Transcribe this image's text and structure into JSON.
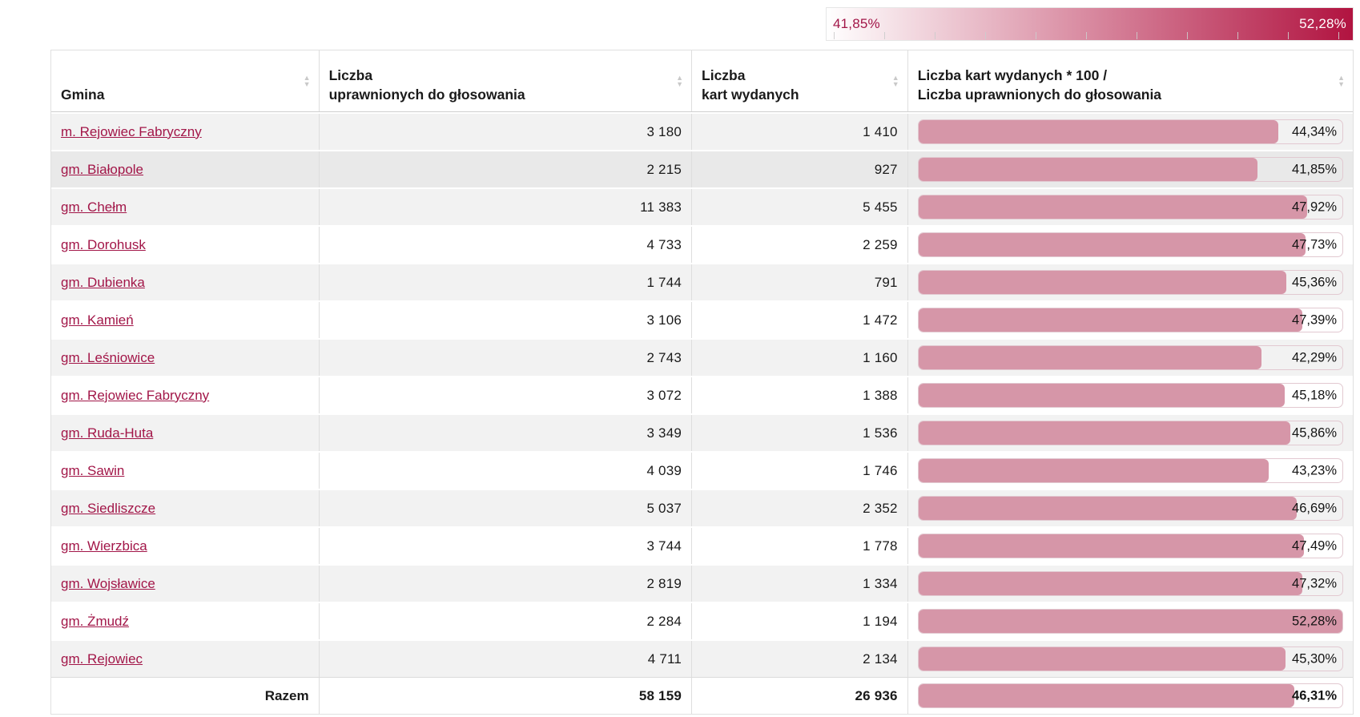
{
  "legend": {
    "min_label": "41,85%",
    "max_label": "52,28%",
    "min_value": 41.85,
    "max_value": 52.28,
    "tick_values": [
      42,
      43,
      44,
      45,
      46,
      47,
      48,
      49,
      50,
      51,
      52
    ]
  },
  "colors": {
    "accent": "#a21648",
    "bar_fill": "#d696a8",
    "gradient_start": "#ffffff",
    "gradient_end": "#b11340",
    "row_stripe": "#f2f2f2",
    "row_hover": "#e9e9e9"
  },
  "table": {
    "columns": [
      {
        "lines": [
          "Gmina"
        ]
      },
      {
        "lines": [
          "Liczba",
          "uprawnionych do głosowania"
        ]
      },
      {
        "lines": [
          "Liczba",
          "kart wydanych"
        ]
      },
      {
        "lines": [
          "Liczba kart wydanych * 100 /",
          "Liczba uprawnionych do głosowania"
        ]
      }
    ],
    "rows": [
      {
        "gmina": "m. Rejowiec Fabryczny",
        "uprawnieni": "3 180",
        "karty": "1 410",
        "procent": "44,34%",
        "procent_value": 44.34,
        "highlight": false
      },
      {
        "gmina": "gm. Białopole",
        "uprawnieni": "2 215",
        "karty": "927",
        "procent": "41,85%",
        "procent_value": 41.85,
        "highlight": true
      },
      {
        "gmina": "gm. Chełm",
        "uprawnieni": "11 383",
        "karty": "5 455",
        "procent": "47,92%",
        "procent_value": 47.92,
        "highlight": false
      },
      {
        "gmina": "gm. Dorohusk",
        "uprawnieni": "4 733",
        "karty": "2 259",
        "procent": "47,73%",
        "procent_value": 47.73,
        "highlight": false
      },
      {
        "gmina": "gm. Dubienka",
        "uprawnieni": "1 744",
        "karty": "791",
        "procent": "45,36%",
        "procent_value": 45.36,
        "highlight": false
      },
      {
        "gmina": "gm. Kamień",
        "uprawnieni": "3 106",
        "karty": "1 472",
        "procent": "47,39%",
        "procent_value": 47.39,
        "highlight": false
      },
      {
        "gmina": "gm. Leśniowice",
        "uprawnieni": "2 743",
        "karty": "1 160",
        "procent": "42,29%",
        "procent_value": 42.29,
        "highlight": false
      },
      {
        "gmina": "gm. Rejowiec Fabryczny",
        "uprawnieni": "3 072",
        "karty": "1 388",
        "procent": "45,18%",
        "procent_value": 45.18,
        "highlight": false
      },
      {
        "gmina": "gm. Ruda-Huta",
        "uprawnieni": "3 349",
        "karty": "1 536",
        "procent": "45,86%",
        "procent_value": 45.86,
        "highlight": false
      },
      {
        "gmina": "gm. Sawin",
        "uprawnieni": "4 039",
        "karty": "1 746",
        "procent": "43,23%",
        "procent_value": 43.23,
        "highlight": false
      },
      {
        "gmina": "gm. Siedliszcze",
        "uprawnieni": "5 037",
        "karty": "2 352",
        "procent": "46,69%",
        "procent_value": 46.69,
        "highlight": false
      },
      {
        "gmina": "gm. Wierzbica",
        "uprawnieni": "3 744",
        "karty": "1 778",
        "procent": "47,49%",
        "procent_value": 47.49,
        "highlight": false
      },
      {
        "gmina": "gm. Wojsławice",
        "uprawnieni": "2 819",
        "karty": "1 334",
        "procent": "47,32%",
        "procent_value": 47.32,
        "highlight": false
      },
      {
        "gmina": "gm. Żmudź",
        "uprawnieni": "2 284",
        "karty": "1 194",
        "procent": "52,28%",
        "procent_value": 52.28,
        "highlight": false
      },
      {
        "gmina": "gm. Rejowiec",
        "uprawnieni": "4 711",
        "karty": "2 134",
        "procent": "45,30%",
        "procent_value": 45.3,
        "highlight": false
      }
    ],
    "total": {
      "label": "Razem",
      "uprawnieni": "58 159",
      "karty": "26 936",
      "procent": "46,31%",
      "procent_value": 46.31
    }
  }
}
